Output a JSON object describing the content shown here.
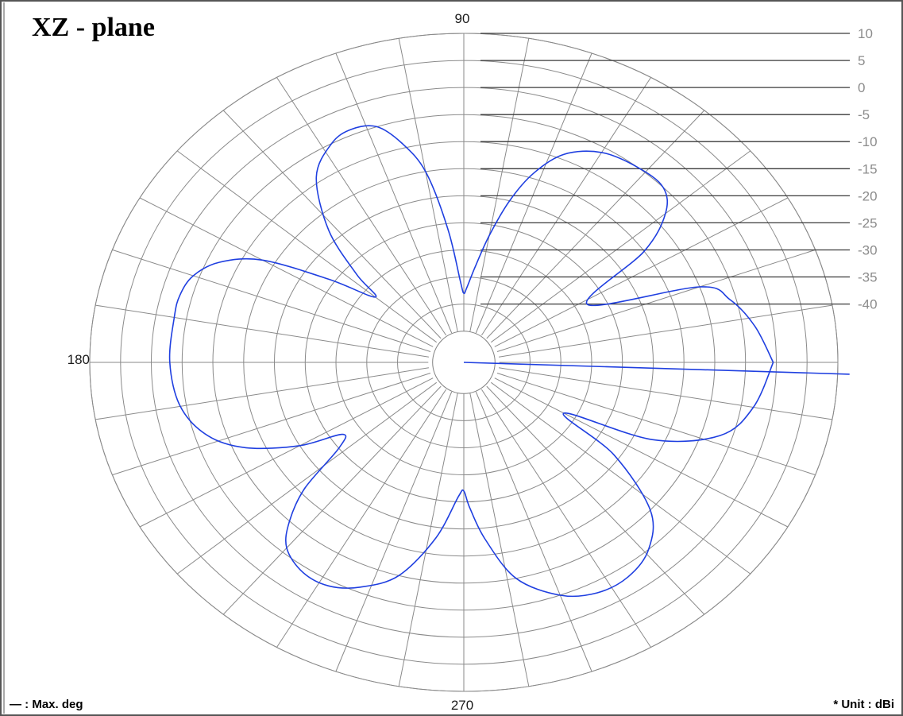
{
  "chart_data": {
    "type": "polar",
    "title": "XZ - plane",
    "angle_labels": {
      "top": "90",
      "left": "180",
      "bottom": "270"
    },
    "radial_ticks": [
      "10",
      "5",
      "0",
      "-5",
      "-10",
      "-15",
      "-20",
      "-25",
      "-30",
      "-35",
      "-40"
    ],
    "rlim": [
      -45,
      10
    ],
    "max_direction_deg": -2,
    "legend": "— : Max. deg",
    "unit_label": "* Unit :  dBi",
    "series": [
      {
        "color": "#1f3fe0",
        "angles_deg": [
          0,
          8,
          15,
          20,
          28,
          35,
          40,
          45,
          52,
          60,
          67,
          72,
          76,
          80,
          84,
          88,
          90,
          92,
          96,
          100,
          104,
          108,
          113,
          118,
          125,
          132,
          137,
          140,
          145,
          150,
          155,
          160,
          165,
          170,
          180,
          190,
          198,
          204,
          210,
          214,
          218,
          222,
          226,
          230,
          236,
          242,
          248,
          255,
          262,
          268,
          270,
          272,
          276,
          282,
          290,
          297,
          304,
          311,
          318,
          325,
          330,
          335,
          342,
          350,
          360
        ],
        "gain_dbi": [
          -0.5,
          -3,
          -6,
          -10,
          -28,
          -15,
          -8,
          -5,
          -5,
          -6,
          -9,
          -14,
          -20,
          -27,
          -33,
          -37,
          -38,
          -36,
          -26,
          -15,
          -9,
          -5,
          -4,
          -5,
          -9,
          -18,
          -27,
          -32,
          -24,
          -13,
          -7,
          -4,
          -3,
          -3,
          -3,
          -4,
          -7,
          -12,
          -20,
          -27,
          -25,
          -16,
          -10,
          -6,
          -4,
          -4,
          -6,
          -10,
          -18,
          -26,
          -27,
          -24,
          -18,
          -10,
          -5,
          -3,
          -3,
          -5,
          -10,
          -21,
          -32,
          -17,
          -7,
          -3,
          -0.5
        ]
      }
    ]
  }
}
